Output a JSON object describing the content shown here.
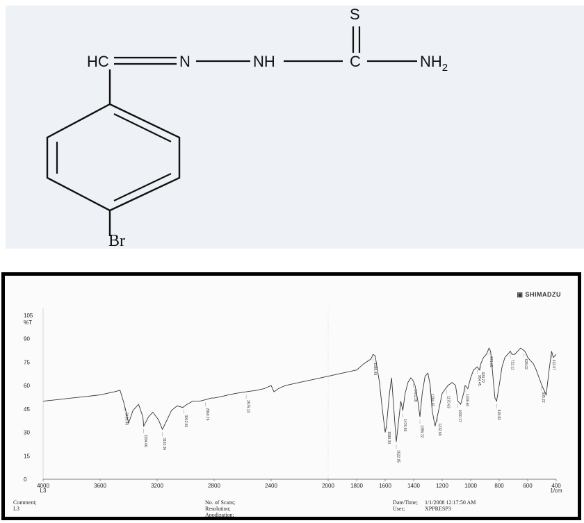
{
  "structure": {
    "labels": {
      "hc": "HC",
      "n": "N",
      "nh": "NH",
      "c": "C",
      "s": "S",
      "nh2_base": "NH",
      "nh2_sub": "2",
      "br": "Br"
    }
  },
  "spectrum": {
    "brand": "SHIMADZU",
    "ylabel": "%T",
    "xunit": "1/cm",
    "xlabel_extra": "L3",
    "footer": {
      "comment": "Comment;",
      "comment_value": "L3",
      "scans": "No. of Scans;",
      "resolution": "Resolution;",
      "apodization": "Apodization;",
      "datetime_label": "Date/Time;",
      "datetime_value": "1/1/2008 12:17:50 AM",
      "user_label": "User;",
      "user_value": "XPPRESP3"
    }
  },
  "chart_data": {
    "type": "line",
    "title": "",
    "xlabel": "1/cm",
    "ylabel": "%T",
    "xlim": [
      4000,
      400
    ],
    "ylim": [
      0,
      105
    ],
    "x_ticks": [
      4000,
      3600,
      3200,
      2800,
      2400,
      2000,
      1800,
      1600,
      1400,
      1200,
      1000,
      800,
      600,
      400
    ],
    "x_tick_labels": [
      "4000",
      "3600",
      "3200",
      "2800",
      "2400",
      "2000",
      "1800",
      "1600",
      "1400",
      "1200",
      "1000",
      "800",
      "600",
      "400"
    ],
    "y_ticks": [
      0,
      15,
      30,
      45,
      60,
      75,
      90,
      105
    ],
    "y_tick_labels": [
      "0",
      "15",
      "30",
      "45",
      "60",
      "75",
      "90",
      "105"
    ],
    "series": [
      {
        "x": [
          4000,
          3900,
          3800,
          3700,
          3600,
          3500,
          3460,
          3430,
          3400,
          3370,
          3330,
          3300,
          3294,
          3260,
          3230,
          3190,
          3163,
          3130,
          3100,
          3060,
          3020,
          2990,
          2950,
          2900,
          2860,
          2820,
          2800,
          2750,
          2700,
          2650,
          2575,
          2500,
          2450,
          2400,
          2380,
          2350,
          2300,
          2200,
          2100,
          2000,
          1900,
          1800,
          1750,
          1700,
          1685,
          1670,
          1640,
          1620,
          1600,
          1590,
          1570,
          1555,
          1535,
          1522,
          1505,
          1490,
          1476,
          1460,
          1440,
          1420,
          1403,
          1390,
          1370,
          1356,
          1340,
          1320,
          1300,
          1284,
          1270,
          1250,
          1230,
          1200,
          1160,
          1130,
          1106,
          1090,
          1070,
          1050,
          1039,
          1020,
          1000,
          980,
          954,
          940,
          929,
          910,
          890,
          871,
          860,
          850,
          840,
          830,
          818,
          800,
          780,
          760,
          740,
          722,
          710,
          690,
          670,
          650,
          620,
          609,
          600,
          580,
          560,
          540,
          520,
          500,
          480,
          470,
          450,
          432,
          420,
          400
        ],
        "y": [
          50,
          51,
          52,
          53,
          54,
          56,
          57,
          48,
          36,
          44,
          48,
          40,
          34,
          40,
          43,
          38,
          32,
          38,
          44,
          47,
          46,
          48,
          50,
          50,
          51,
          52,
          52,
          53,
          54,
          55,
          56,
          57,
          58,
          60,
          56,
          58,
          60,
          62,
          64,
          66,
          68,
          70,
          74,
          77,
          80,
          79,
          62,
          45,
          30,
          35,
          55,
          65,
          40,
          24,
          38,
          50,
          44,
          55,
          62,
          65,
          63,
          60,
          50,
          40,
          55,
          66,
          68,
          60,
          44,
          34,
          42,
          55,
          60,
          62,
          60,
          50,
          48,
          55,
          60,
          58,
          65,
          70,
          72,
          70,
          74,
          78,
          80,
          84,
          82,
          72,
          62,
          52,
          50,
          60,
          72,
          78,
          80,
          82,
          80,
          80,
          82,
          84,
          82,
          80,
          78,
          76,
          74,
          70,
          65,
          60,
          56,
          54,
          70,
          82,
          78,
          80
        ]
      }
    ],
    "peak_labels": [
      "3430.40",
      "3294.06",
      "3163.36",
      "3012.81",
      "2860.76",
      "2575.13",
      "1685.49",
      "1589.34",
      "1522.95",
      "1476.59",
      "1403.18",
      "1356.72",
      "1284.65",
      "1232.60",
      "1170.63",
      "1090.17",
      "1039.60",
      "954.45",
      "929.72",
      "871.65",
      "818.82",
      "722.11",
      "628.02",
      "505.22",
      "432.07"
    ],
    "peak_x": [
      3430,
      3294,
      3163,
      3012,
      2860,
      2575,
      1685,
      1589,
      1522,
      1476,
      1403,
      1356,
      1284,
      1232,
      1170,
      1090,
      1039,
      954,
      929,
      871,
      818,
      722,
      628,
      505,
      432
    ]
  }
}
